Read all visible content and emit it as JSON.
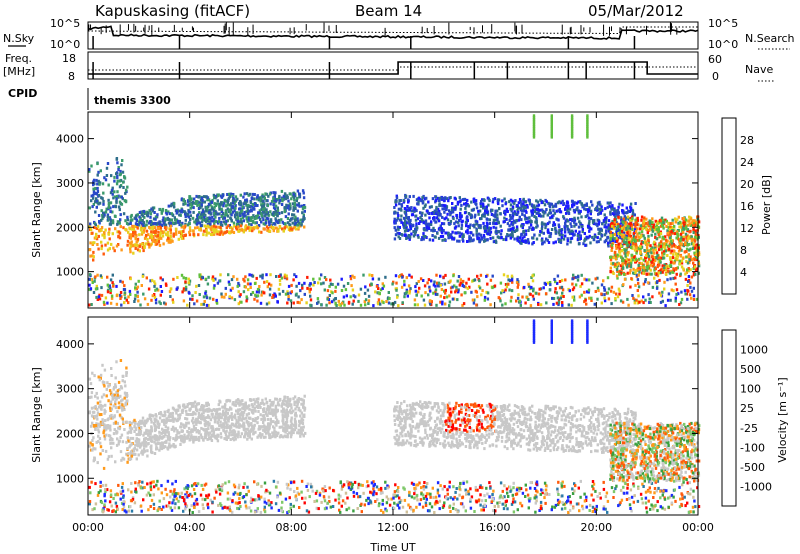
{
  "header": {
    "station": "Kapuskasing (fitACF)",
    "beam": "Beam 14",
    "date": "05/Mar/2012"
  },
  "summary_panels": {
    "nsky_label": "N.Sky",
    "nsearch_label": "N.Search",
    "noise_ticks": [
      "10^5",
      "10^0"
    ],
    "freq_label_line1": "Freq.",
    "freq_label_line2": "[MHz]",
    "freq_ticks": [
      "18",
      "8"
    ],
    "nave_label": "Nave",
    "nave_ticks": [
      "60",
      "0"
    ],
    "cpid_label": "CPID",
    "cpid_value": "themis 3300"
  },
  "colors": {
    "power_scale": [
      "#1a1aff",
      "#2848c8",
      "#2e6e8a",
      "#3a9a6a",
      "#5fbf3c",
      "#e6d21e",
      "#ff9a1a",
      "#ff5a0a",
      "#ff1a00"
    ],
    "velocity_scale": [
      "#ff0000",
      "#ff5a0a",
      "#ff9a1a",
      "#d0c09a",
      "#c8c8c8",
      "#7ec86a",
      "#3aa040",
      "#2a7aa8",
      "#1a2aff"
    ]
  },
  "chart_data": [
    {
      "type": "heatmap",
      "panel": "power",
      "ylabel": "Slant Range [km]",
      "ylim": [
        180,
        4600
      ],
      "y_ticks": [
        1000,
        2000,
        3000,
        4000
      ],
      "colorbar_label": "Power [dB]",
      "colorbar_ticks": [
        "4",
        "8",
        "12",
        "16",
        "20",
        "24",
        "28"
      ],
      "echo_regions": [
        {
          "t_start": 0.0,
          "t_end": 8.5,
          "range_km": [
            1200,
            3100
          ],
          "power_db": [
            4,
            24
          ]
        },
        {
          "t_start": 12.0,
          "t_end": 21.5,
          "range_km": [
            1600,
            2800
          ],
          "power_db": [
            4,
            16
          ]
        },
        {
          "t_start": 21.0,
          "t_end": 24.0,
          "range_km": [
            1000,
            2200
          ],
          "power_db": [
            8,
            28
          ]
        }
      ]
    },
    {
      "type": "heatmap",
      "panel": "velocity",
      "ylabel": "Slant Range [km]",
      "ylim": [
        180,
        4600
      ],
      "y_ticks": [
        1000,
        2000,
        3000,
        4000
      ],
      "colorbar_label": "Velocity [m s⁻¹]",
      "colorbar_ticks": [
        "-1000",
        "-500",
        "-100",
        "-25",
        "25",
        "100",
        "500",
        "1000"
      ],
      "xlabel": "Time UT",
      "x_ticks": [
        "00:00",
        "04:00",
        "08:00",
        "12:00",
        "16:00",
        "20:00",
        "00:00"
      ],
      "echo_regions": [
        {
          "t_start": 0.0,
          "t_end": 8.5,
          "range_km": [
            1200,
            3100
          ],
          "velocity": [
            -25,
            25
          ]
        },
        {
          "t_start": 14.0,
          "t_end": 16.0,
          "range_km": [
            2000,
            2800
          ],
          "velocity": [
            -1000,
            -500
          ]
        },
        {
          "t_start": 20.0,
          "t_end": 24.0,
          "range_km": [
            800,
            2200
          ],
          "velocity": [
            -100,
            500
          ]
        }
      ]
    }
  ]
}
